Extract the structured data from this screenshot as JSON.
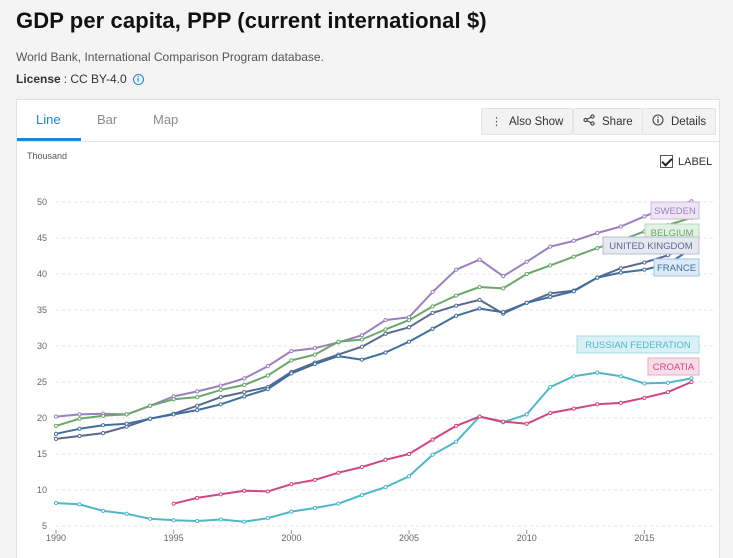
{
  "header": {
    "title": "GDP per capita, PPP (current international $)",
    "source": "World Bank, International Comparison Program database.",
    "license_label": "License",
    "license_value": ": CC BY-4.0",
    "info_icon": "info-circle-icon"
  },
  "tabs": [
    {
      "label": "Line",
      "active": true
    },
    {
      "label": "Bar",
      "active": false
    },
    {
      "label": "Map",
      "active": false
    }
  ],
  "toolbar": {
    "also_show": "Also Show",
    "share": "Share",
    "details": "Details",
    "also_show_icon": "vertical-dots-icon",
    "share_icon": "share-icon",
    "details_icon": "info-circle-icon"
  },
  "label_toggle": {
    "label": "LABEL",
    "checked": true
  },
  "colors": {
    "accent": "#1a8ad3",
    "sweden": "#9b7fbf",
    "belgium": "#6aa86a",
    "united_kingdom": "#5a6a8f",
    "france": "#3f6f9e",
    "russia": "#4fb7c8",
    "croatia": "#d1467f"
  },
  "chart_data": {
    "type": "line",
    "title": "GDP per capita, PPP (current international $)",
    "ylabel": "Thousand",
    "xlim": [
      1990,
      2018
    ],
    "ylim": [
      5,
      50
    ],
    "xticks": [
      1990,
      1995,
      2000,
      2005,
      2010,
      2015
    ],
    "yticks": [
      5,
      10,
      15,
      20,
      25,
      30,
      35,
      40,
      45,
      50
    ],
    "grid": true,
    "legend": "inline labels at right end of series",
    "x": [
      1990,
      1991,
      1992,
      1993,
      1994,
      1995,
      1996,
      1997,
      1998,
      1999,
      2000,
      2001,
      2002,
      2003,
      2004,
      2005,
      2006,
      2007,
      2008,
      2009,
      2010,
      2011,
      2012,
      2013,
      2014,
      2015,
      2016,
      2017
    ],
    "series": [
      {
        "name": "SWEDEN",
        "color": "#9b7fbf",
        "label_bg": "#eee6f5",
        "label_border": "#cbb8e0",
        "values": [
          20.2,
          20.5,
          20.6,
          20.5,
          21.7,
          23.0,
          23.7,
          24.5,
          25.5,
          27.2,
          29.3,
          29.7,
          30.5,
          31.5,
          33.6,
          34.0,
          37.5,
          40.6,
          42.0,
          39.7,
          41.7,
          43.8,
          44.6,
          45.7,
          46.6,
          48.0,
          49.3,
          50.1
        ]
      },
      {
        "name": "BELGIUM",
        "color": "#6aa86a",
        "label_bg": "#e3f1e3",
        "label_border": "#b5d8b5",
        "values": [
          18.9,
          19.9,
          20.3,
          20.5,
          21.7,
          22.6,
          22.9,
          23.9,
          24.6,
          25.9,
          28.0,
          28.8,
          30.6,
          30.9,
          32.3,
          33.6,
          35.5,
          37.0,
          38.2,
          38.0,
          40.0,
          41.2,
          42.4,
          43.6,
          44.7,
          45.9,
          46.8,
          47.8
        ]
      },
      {
        "name": "UNITED KINGDOM",
        "color": "#5a6a8f",
        "label_bg": "#e6e8f0",
        "label_border": "#b8bfd3",
        "values": [
          17.1,
          17.5,
          17.9,
          18.8,
          19.9,
          20.6,
          21.7,
          22.9,
          23.6,
          24.3,
          26.4,
          27.7,
          28.8,
          29.9,
          31.7,
          32.6,
          34.6,
          35.6,
          36.4,
          34.5,
          36.0,
          37.3,
          37.7,
          39.5,
          40.8,
          41.6,
          42.6,
          44.1
        ]
      },
      {
        "name": "FRANCE",
        "color": "#3f6f9e",
        "label_bg": "#dcebf7",
        "label_border": "#9fc4e2",
        "values": [
          17.8,
          18.5,
          19.0,
          19.2,
          19.9,
          20.5,
          21.1,
          21.9,
          23.0,
          24.0,
          26.2,
          27.5,
          28.6,
          28.1,
          29.1,
          30.6,
          32.4,
          34.2,
          35.2,
          34.7,
          36.0,
          36.8,
          37.6,
          39.5,
          40.2,
          40.6,
          41.4,
          43.5
        ]
      },
      {
        "name": "RUSSIAN FEDERATION",
        "color": "#4fb7c8",
        "label_bg": "#d9f1f5",
        "label_border": "#a5dce6",
        "values": [
          8.2,
          8.0,
          7.1,
          6.7,
          6.0,
          5.8,
          5.7,
          5.9,
          5.6,
          6.1,
          7.0,
          7.5,
          8.1,
          9.3,
          10.4,
          11.9,
          14.9,
          16.7,
          20.2,
          19.4,
          20.5,
          24.3,
          25.8,
          26.3,
          25.8,
          24.8,
          24.9,
          25.5
        ]
      },
      {
        "name": "CROATIA",
        "color": "#d1467f",
        "label_bg": "#f8dde9",
        "label_border": "#e9a9c5",
        "values": [
          null,
          null,
          null,
          null,
          null,
          8.1,
          8.9,
          9.4,
          9.9,
          9.8,
          10.8,
          11.4,
          12.4,
          13.2,
          14.2,
          15.0,
          17.0,
          18.9,
          20.2,
          19.5,
          19.2,
          20.7,
          21.3,
          21.9,
          22.1,
          22.8,
          23.6,
          25.0
        ]
      }
    ]
  }
}
